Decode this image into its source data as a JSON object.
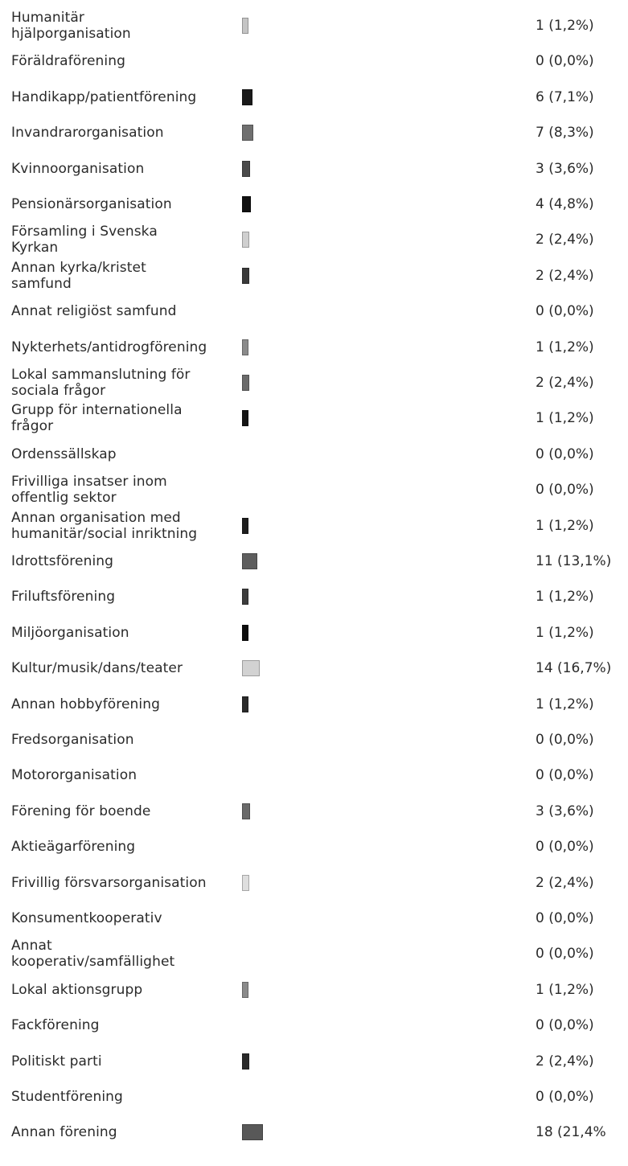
{
  "chart_data": {
    "type": "bar",
    "orientation": "horizontal",
    "categories": [
      "Humanitär hjälporganisation",
      "Föräldraförening",
      "Handikapp/patientförening",
      "Invandrarorganisation",
      "Kvinnoorganisation",
      "Pensionärsorganisation",
      "Församling i Svenska Kyrkan",
      "Annan kyrka/kristet samfund",
      "Annat religiöst samfund",
      "Nykterhets/antidrogförening",
      "Lokal sammanslutning för sociala frågor",
      "Grupp för internationella frågor",
      "Ordenssällskap",
      "Frivilliga insatser inom offentlig sektor",
      "Annan organisation med humanitär/social inriktning",
      "Idrottsförening",
      "Friluftsförening",
      "Miljöorganisation",
      "Kultur/musik/dans/teater",
      "Annan hobbyförening",
      "Fredsorganisation",
      "Motororganisation",
      "Förening för boende",
      "Aktieägarförening",
      "Frivillig försvarsorganisation",
      "Konsumentkooperativ",
      "Annat kooperativ/samfällighet",
      "Lokal aktionsgrupp",
      "Fackförening",
      "Politiskt parti",
      "Studentförening",
      "Annan förening"
    ],
    "values": [
      1,
      0,
      6,
      7,
      3,
      4,
      2,
      2,
      0,
      1,
      2,
      1,
      0,
      0,
      1,
      11,
      1,
      1,
      14,
      1,
      0,
      0,
      3,
      0,
      2,
      0,
      0,
      1,
      0,
      2,
      0,
      18
    ],
    "value_labels": [
      "1 (1,2%)",
      "0 (0,0%)",
      "6 (7,1%)",
      "7 (8,3%)",
      "3 (3,6%)",
      "4 (4,8%)",
      "2 (2,4%)",
      "2 (2,4%)",
      "0 (0,0%)",
      "1 (1,2%)",
      "2 (2,4%)",
      "1 (1,2%)",
      "0 (0,0%)",
      "0 (0,0%)",
      "1 (1,2%)",
      "11 (13,1%)",
      "1 (1,2%)",
      "1 (1,2%)",
      "14 (16,7%)",
      "1 (1,2%)",
      "0 (0,0%)",
      "0 (0,0%)",
      "3 (3,6%)",
      "0 (0,0%)",
      "2 (2,4%)",
      "0 (0,0%)",
      "0 (0,0%)",
      "1 (1,2%)",
      "0 (0,0%)",
      "2 (2,4%)",
      "0 (0,0%)",
      "18 (21,4%"
    ],
    "bar_colors": [
      "#c4c4c4",
      "#ffffff",
      "#1a1a1a",
      "#6f6f6f",
      "#4a4a4a",
      "#111111",
      "#cfcfcf",
      "#3a3a3a",
      "#ffffff",
      "#8a8a8a",
      "#6a6a6a",
      "#151515",
      "#ffffff",
      "#ffffff",
      "#1e1e1e",
      "#5e5e5e",
      "#3d3d3d",
      "#0d0d0d",
      "#d2d2d2",
      "#2a2a2a",
      "#ffffff",
      "#ffffff",
      "#6a6a6a",
      "#ffffff",
      "#dedede",
      "#ffffff",
      "#ffffff",
      "#8a8a8a",
      "#ffffff",
      "#2a2a2a",
      "#ffffff",
      "#585858"
    ],
    "label_lines": [
      [
        "Humanitär",
        "hjälporganisation"
      ],
      [
        "Föräldraförening"
      ],
      [
        "Handikapp/patientförening"
      ],
      [
        "Invandrarorganisation"
      ],
      [
        "Kvinnoorganisation"
      ],
      [
        "Pensionärsorganisation"
      ],
      [
        "Församling i Svenska",
        "Kyrkan"
      ],
      [
        "Annan kyrka/kristet",
        "samfund"
      ],
      [
        "Annat religiöst samfund"
      ],
      [
        "Nykterhets/antidrogförening"
      ],
      [
        "Lokal sammanslutning för",
        "sociala frågor"
      ],
      [
        "Grupp för internationella",
        "frågor"
      ],
      [
        "Ordenssällskap"
      ],
      [
        "Frivilliga insatser inom",
        "offentlig sektor"
      ],
      [
        "Annan organisation med",
        "humanitär/social inriktning"
      ],
      [
        "Idrottsförening"
      ],
      [
        "Friluftsförening"
      ],
      [
        "Miljöorganisation"
      ],
      [
        "Kultur/musik/dans/teater"
      ],
      [
        "Annan hobbyförening"
      ],
      [
        "Fredsorganisation"
      ],
      [
        "Motororganisation"
      ],
      [
        "Förening för boende"
      ],
      [
        "Aktieägarförening"
      ],
      [
        "Frivillig försvarsorganisation"
      ],
      [
        "Konsumentkooperativ"
      ],
      [
        "Annat",
        "kooperativ/samfällighet"
      ],
      [
        "Lokal aktionsgrupp"
      ],
      [
        "Fackförening"
      ],
      [
        "Politiskt parti"
      ],
      [
        "Studentförening"
      ],
      [
        "Annan förening"
      ]
    ]
  }
}
